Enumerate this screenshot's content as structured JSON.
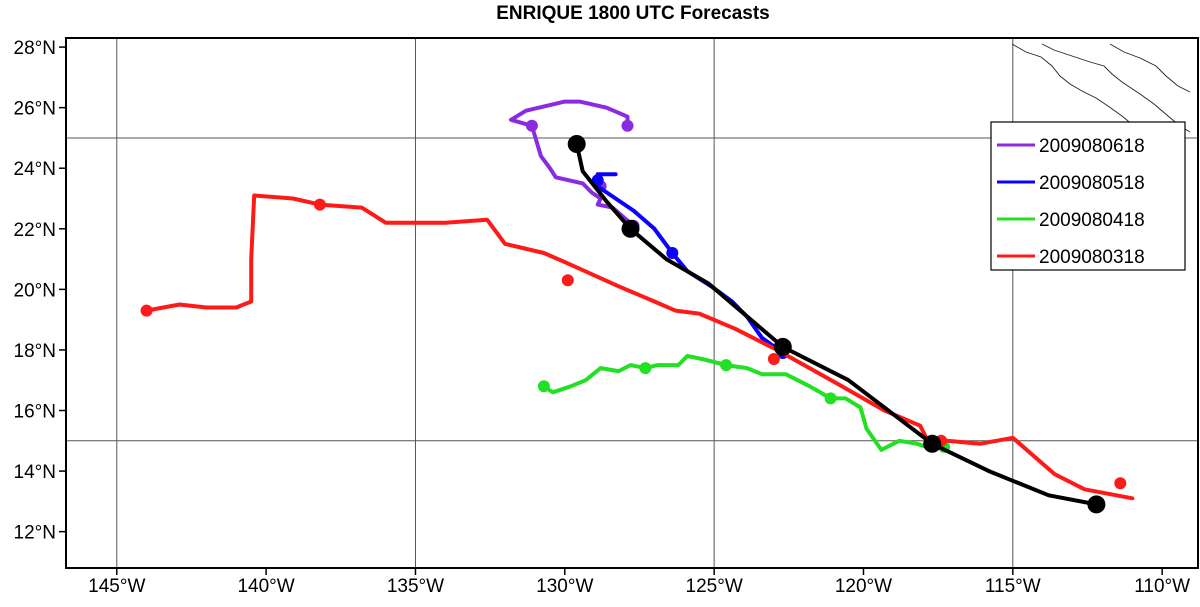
{
  "chart_data": {
    "type": "line",
    "title": "ENRIQUE 1800 UTC Forecasts",
    "xlabel": "",
    "ylabel": "",
    "xlim": [
      -146.7,
      -108.8
    ],
    "ylim": [
      10.8,
      28.3
    ],
    "x_ticks": [
      {
        "value": -145,
        "label": "145°W"
      },
      {
        "value": -140,
        "label": "140°W"
      },
      {
        "value": -135,
        "label": "135°W"
      },
      {
        "value": -130,
        "label": "130°W"
      },
      {
        "value": -125,
        "label": "125°W"
      },
      {
        "value": -120,
        "label": "120°W"
      },
      {
        "value": -115,
        "label": "115°W"
      },
      {
        "value": -110,
        "label": "110°W"
      }
    ],
    "y_ticks": [
      {
        "value": 12,
        "label": "12°N"
      },
      {
        "value": 14,
        "label": "14°N"
      },
      {
        "value": 16,
        "label": "16°N"
      },
      {
        "value": 18,
        "label": "18°N"
      },
      {
        "value": 20,
        "label": "20°N"
      },
      {
        "value": 22,
        "label": "22°N"
      },
      {
        "value": 24,
        "label": "24°N"
      },
      {
        "value": 26,
        "label": "26°N"
      },
      {
        "value": 28,
        "label": "28°N"
      }
    ],
    "grid": {
      "lon_step": 10,
      "lon_start": -145,
      "lat_lines": [
        15,
        25
      ]
    },
    "legend_position": "right",
    "series": [
      {
        "name": "2009080618",
        "color": "#8a2be2",
        "x": [
          -127.9,
          -127.9,
          -128.6,
          -129.5,
          -130.0,
          -131.3,
          -131.8,
          -131.1,
          -130.8,
          -130.5,
          -130.3,
          -129.4,
          -129.1,
          -128.8,
          -128.9,
          -128.4,
          -127.7
        ],
        "y": [
          25.4,
          25.7,
          26.0,
          26.2,
          26.2,
          25.9,
          25.6,
          25.4,
          24.4,
          24.0,
          23.7,
          23.5,
          23.2,
          23.0,
          22.8,
          22.7,
          22.1
        ],
        "markers": [
          [
            -127.9,
            25.4
          ],
          [
            -131.1,
            25.4
          ],
          [
            -128.8,
            23.4
          ],
          [
            -127.7,
            22.1
          ]
        ]
      },
      {
        "name": "2009080518",
        "color": "#0a00ff",
        "x": [
          -128.3,
          -128.9,
          -128.9,
          -128.3,
          -127.7,
          -127.0,
          -126.4,
          -125.9,
          -125.1,
          -124.4,
          -123.9,
          -123.4,
          -122.7
        ],
        "y": [
          23.8,
          23.8,
          23.4,
          23.0,
          22.6,
          22.0,
          21.2,
          20.6,
          20.1,
          19.6,
          19.1,
          18.4,
          17.9
        ],
        "markers": [
          [
            -128.9,
            23.6
          ],
          [
            -126.4,
            21.2
          ],
          [
            -122.7,
            17.9
          ]
        ]
      },
      {
        "name": "2009080418",
        "color": "#22e022",
        "x": [
          -130.7,
          -130.4,
          -129.8,
          -129.3,
          -128.8,
          -128.2,
          -127.8,
          -127.3,
          -126.9,
          -126.2,
          -125.9,
          -125.4,
          -124.6,
          -123.9,
          -123.4,
          -122.6,
          -121.8,
          -121.1,
          -120.6,
          -120.1,
          -119.9,
          -119.4,
          -118.8,
          -118.2,
          -117.9,
          -117.3
        ],
        "y": [
          16.8,
          16.6,
          16.8,
          17.0,
          17.4,
          17.3,
          17.5,
          17.4,
          17.5,
          17.5,
          17.8,
          17.7,
          17.5,
          17.4,
          17.2,
          17.2,
          16.8,
          16.4,
          16.4,
          16.1,
          15.4,
          14.7,
          15.0,
          14.9,
          14.8,
          14.8
        ],
        "markers": [
          [
            -130.7,
            16.8
          ],
          [
            -127.3,
            17.4
          ],
          [
            -124.6,
            17.5
          ],
          [
            -121.1,
            16.4
          ],
          [
            -117.3,
            14.8
          ]
        ]
      },
      {
        "name": "2009080318",
        "color": "#ff1a1a",
        "x": [
          -144.0,
          -142.9,
          -142.0,
          -141.0,
          -140.5,
          -140.5,
          -140.4,
          -139.1,
          -138.2,
          -136.8,
          -136.0,
          -134.0,
          -132.6,
          -132.0,
          -130.7,
          -130.0,
          -128.2,
          -127.0,
          -126.3,
          -125.5,
          -124.3,
          -122.9,
          -120.9,
          -119.3,
          -118.1,
          -117.9,
          -117.2,
          -116.1,
          -115.0,
          -113.6,
          -112.6,
          -111.0
        ],
        "y": [
          19.3,
          19.5,
          19.4,
          19.4,
          19.6,
          21.0,
          23.1,
          23.0,
          22.8,
          22.7,
          22.2,
          22.2,
          22.3,
          21.5,
          21.2,
          20.9,
          20.1,
          19.6,
          19.3,
          19.2,
          18.7,
          18.0,
          16.9,
          16.0,
          15.5,
          15.1,
          15.0,
          14.9,
          15.1,
          13.9,
          13.4,
          13.1
        ],
        "markers": [
          [
            -144.0,
            19.3
          ],
          [
            -138.2,
            22.8
          ],
          [
            -129.9,
            20.3
          ],
          [
            -123.0,
            17.7
          ],
          [
            -117.4,
            15.0
          ],
          [
            -111.4,
            13.6
          ]
        ]
      },
      {
        "name": "",
        "color": "#000000",
        "x": [
          -129.6,
          -129.4,
          -128.6,
          -127.8,
          -126.6,
          -125.2,
          -122.7,
          -120.5,
          -117.7,
          -115.8,
          -113.8,
          -112.2
        ],
        "y": [
          24.8,
          23.9,
          22.9,
          22.0,
          21.0,
          20.2,
          18.1,
          17.0,
          14.9,
          14.0,
          13.2,
          12.9
        ],
        "markers": [
          [
            -129.6,
            24.8
          ],
          [
            -127.8,
            22.0
          ],
          [
            -122.7,
            18.1
          ],
          [
            -117.7,
            14.9
          ],
          [
            -112.2,
            12.9
          ]
        ]
      }
    ]
  }
}
